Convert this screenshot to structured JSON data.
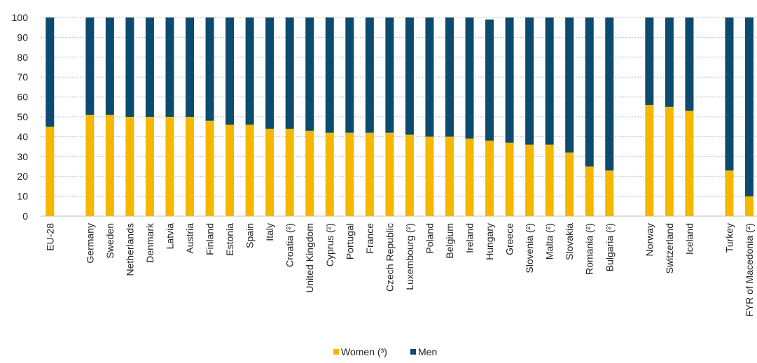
{
  "chart_data": {
    "type": "bar",
    "stacked": true,
    "categories": [
      "EU-28",
      "Germany",
      "Sweden",
      "Netherlands",
      "Denmark",
      "Latvia",
      "Austria",
      "Finland",
      "Estonia",
      "Spain",
      "Italy",
      "Croatia (²)",
      "United Kingdom",
      "Cyprus (²)",
      "Portugal",
      "France",
      "Czech Republic",
      "Luxembourg (²)",
      "Poland",
      "Belgium",
      "Ireland",
      "Hungary",
      "Greece",
      "Slovenia (²)",
      "Malta (²)",
      "Slovakia",
      "Romania (²)",
      "Bulgaria (²)",
      "Norway",
      "Switzerland",
      "Iceland",
      "Turkey",
      "FYR of Macedonia (²)"
    ],
    "group_gaps_after": [
      0,
      27,
      30
    ],
    "series": [
      {
        "name": "Women (³)",
        "color": "#f5b700",
        "values": [
          45,
          51,
          51,
          50,
          50,
          50,
          50,
          48,
          46,
          46,
          44,
          44,
          43,
          42,
          42,
          42,
          42,
          41,
          40,
          40,
          39,
          38,
          37,
          36,
          36,
          32,
          25,
          23,
          56,
          55,
          53,
          23,
          10
        ]
      },
      {
        "name": "Men",
        "color": "#0c4a6e",
        "values": [
          55,
          49,
          49,
          50,
          50,
          50,
          50,
          52,
          54,
          54,
          56,
          56,
          57,
          58,
          58,
          58,
          58,
          59,
          60,
          60,
          61,
          61,
          63,
          64,
          64,
          68,
          75,
          77,
          44,
          45,
          47,
          77,
          90
        ]
      }
    ],
    "yticks": [
      0,
      10,
      20,
      30,
      40,
      50,
      60,
      70,
      80,
      90,
      100
    ],
    "ylim": [
      0,
      100
    ],
    "grid": true,
    "legend_position": "bottom"
  }
}
